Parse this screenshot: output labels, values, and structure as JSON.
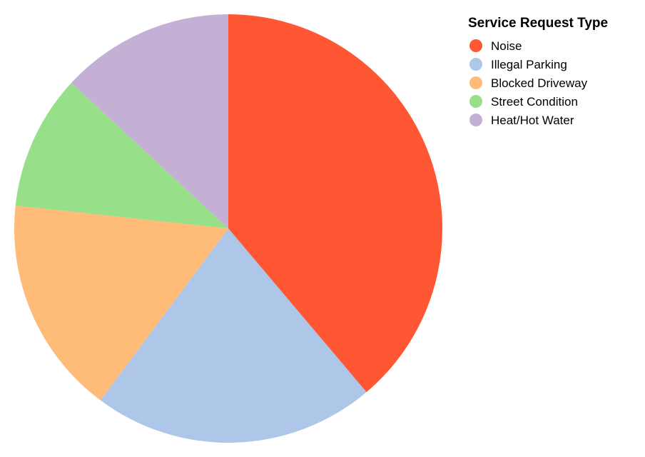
{
  "chart_data": {
    "type": "pie",
    "title": "",
    "legend": {
      "title": "Service Request Type",
      "placement": "top-right"
    },
    "slices": [
      {
        "label": "Noise",
        "value": 40,
        "color": "#ff5733"
      },
      {
        "label": "Illegal Parking",
        "value": 22,
        "color": "#aec7e8"
      },
      {
        "label": "Blocked Driveway",
        "value": 17,
        "color": "#ffbb78"
      },
      {
        "label": "Street Condition",
        "value": 10.5,
        "color": "#98df8a"
      },
      {
        "label": "Heat/Hot Water",
        "value": 13.5,
        "color": "#c5b0d5"
      }
    ]
  }
}
